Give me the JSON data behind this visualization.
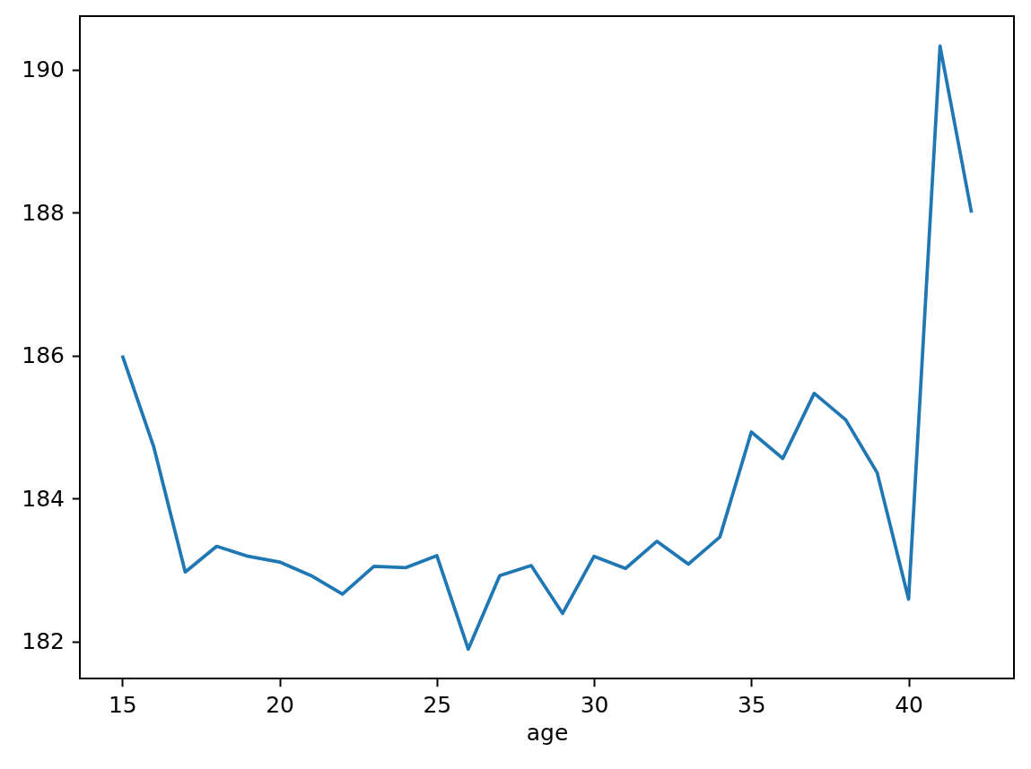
{
  "chart_data": {
    "type": "line",
    "xlabel": "age",
    "x": [
      15,
      16,
      17,
      18,
      19,
      20,
      21,
      22,
      23,
      24,
      25,
      26,
      27,
      28,
      29,
      30,
      31,
      32,
      33,
      34,
      35,
      36,
      37,
      38,
      39,
      40,
      41,
      42
    ],
    "series": [
      {
        "color": "#1f77b4",
        "values": [
          186.0,
          184.72,
          182.97,
          183.33,
          183.19,
          183.11,
          182.92,
          182.66,
          183.05,
          183.03,
          183.2,
          181.89,
          182.92,
          183.06,
          182.39,
          183.19,
          183.02,
          183.4,
          183.08,
          183.46,
          184.93,
          184.56,
          185.47,
          185.1,
          184.36,
          182.59,
          190.33,
          188.0
        ]
      }
    ],
    "xlim": [
      13.65,
      43.35
    ],
    "ylim": [
      181.48,
      190.75
    ],
    "xticks": [
      15,
      20,
      25,
      30,
      35,
      40
    ],
    "yticks": [
      182,
      184,
      186,
      188,
      190
    ],
    "line_style": "solid"
  }
}
